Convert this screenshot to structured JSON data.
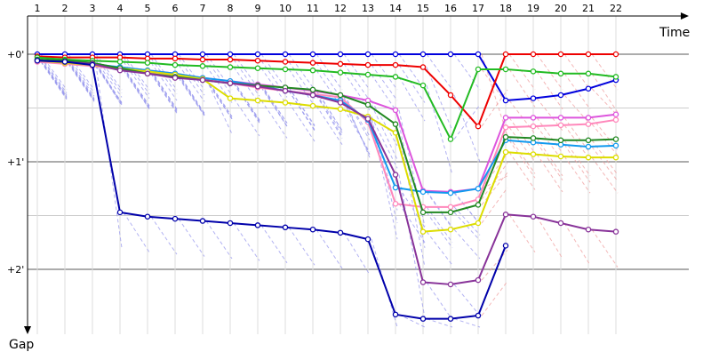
{
  "chart_data": {
    "type": "line",
    "xlabel": "Time",
    "ylabel": "Gap",
    "x_ticks": [
      "1",
      "2",
      "3",
      "4",
      "5",
      "6",
      "7",
      "8",
      "9",
      "10",
      "11",
      "12",
      "13",
      "14",
      "15",
      "16",
      "17",
      "18",
      "19",
      "20",
      "21",
      "22"
    ],
    "y_ticks": [
      {
        "value": 0,
        "label": "+0'"
      },
      {
        "value": 1,
        "label": "+1'"
      },
      {
        "value": 2,
        "label": "+2'"
      }
    ],
    "y_grid": [
      0,
      0.5,
      1,
      1.5,
      2
    ],
    "ylim": [
      -0.22,
      2.72
    ],
    "xlim": [
      0.2,
      23.5
    ],
    "grid": true,
    "pit_line_colors": {
      "before_time_17": "#9999ee",
      "after_time_17": "#f0a0a0"
    },
    "series": [
      {
        "color": "#0000dd",
        "x": [
          1,
          2,
          3,
          4,
          5,
          6,
          7,
          8,
          9,
          10,
          11,
          12,
          13,
          14,
          15,
          16,
          17,
          18,
          19,
          20,
          21,
          22
        ],
        "y": [
          0,
          0,
          0,
          0,
          0,
          0,
          0,
          0,
          0,
          0,
          0,
          0,
          0,
          0,
          0,
          0,
          0,
          0.43,
          0.41,
          0.38,
          0.32,
          0.24
        ]
      },
      {
        "color": "#ee0000",
        "x": [
          1,
          2,
          3,
          4,
          5,
          6,
          7,
          8,
          9,
          10,
          11,
          12,
          13,
          14,
          15,
          16,
          17,
          18,
          19,
          20,
          21,
          22
        ],
        "y": [
          0.02,
          0.03,
          0.03,
          0.03,
          0.04,
          0.04,
          0.05,
          0.05,
          0.06,
          0.07,
          0.08,
          0.09,
          0.1,
          0.1,
          0.12,
          0.38,
          0.67,
          0,
          0,
          0,
          0,
          0
        ]
      },
      {
        "color": "#22bb22",
        "x": [
          1,
          2,
          3,
          4,
          5,
          6,
          7,
          8,
          9,
          10,
          11,
          12,
          13,
          14,
          15,
          16,
          17,
          18,
          19,
          20,
          21,
          22
        ],
        "y": [
          0.03,
          0.05,
          0.06,
          0.07,
          0.08,
          0.1,
          0.11,
          0.12,
          0.13,
          0.14,
          0.15,
          0.17,
          0.19,
          0.21,
          0.29,
          0.79,
          0.14,
          0.14,
          0.16,
          0.18,
          0.18,
          0.21
        ]
      },
      {
        "color": "#dd55dd",
        "x": [
          1,
          2,
          3,
          4,
          5,
          6,
          7,
          8,
          9,
          10,
          11,
          12,
          13,
          14,
          15,
          16,
          17,
          18,
          19,
          20,
          21,
          22
        ],
        "y": [
          0.07,
          0.08,
          0.1,
          0.12,
          0.15,
          0.18,
          0.22,
          0.25,
          0.28,
          0.31,
          0.34,
          0.38,
          0.43,
          0.52,
          1.27,
          1.28,
          1.25,
          0.59,
          0.59,
          0.59,
          0.59,
          0.56
        ]
      },
      {
        "color": "#ff88bb",
        "x": [
          1,
          2,
          3,
          4,
          5,
          6,
          7,
          8,
          9,
          10,
          11,
          12,
          13,
          14,
          15,
          16,
          17,
          18,
          19,
          20,
          21,
          22
        ],
        "y": [
          0.07,
          0.09,
          0.11,
          0.14,
          0.17,
          0.2,
          0.23,
          0.27,
          0.31,
          0.34,
          0.37,
          0.4,
          0.63,
          1.39,
          1.42,
          1.42,
          1.35,
          0.68,
          0.67,
          0.66,
          0.65,
          0.61
        ]
      },
      {
        "color": "#1199ee",
        "x": [
          1,
          2,
          3,
          4,
          5,
          6,
          7,
          8,
          9,
          10,
          11,
          12,
          13,
          14,
          15,
          16,
          17,
          18,
          19,
          20,
          21,
          22
        ],
        "y": [
          0.05,
          0.07,
          0.09,
          0.12,
          0.15,
          0.18,
          0.22,
          0.25,
          0.29,
          0.34,
          0.38,
          0.43,
          0.61,
          1.24,
          1.28,
          1.29,
          1.25,
          0.8,
          0.82,
          0.84,
          0.86,
          0.85
        ]
      },
      {
        "color": "#dddd00",
        "x": [
          1,
          2,
          3,
          4,
          5,
          6,
          7,
          8,
          9,
          10,
          11,
          12,
          13,
          14,
          15,
          16,
          17,
          18,
          19,
          20,
          21,
          22
        ],
        "y": [
          0.06,
          0.08,
          0.1,
          0.13,
          0.16,
          0.19,
          0.23,
          0.41,
          0.43,
          0.45,
          0.48,
          0.51,
          0.58,
          0.73,
          1.65,
          1.63,
          1.57,
          0.91,
          0.93,
          0.95,
          0.96,
          0.96
        ]
      },
      {
        "color": "#228822",
        "x": [
          1,
          2,
          3,
          4,
          5,
          6,
          7,
          8,
          9,
          10,
          11,
          12,
          13,
          14,
          15,
          16,
          17,
          18,
          19,
          20,
          21,
          22
        ],
        "y": [
          0.05,
          0.06,
          0.08,
          0.13,
          0.18,
          0.21,
          0.24,
          0.27,
          0.29,
          0.31,
          0.33,
          0.38,
          0.47,
          0.65,
          1.47,
          1.47,
          1.4,
          0.77,
          0.78,
          0.8,
          0.8,
          0.79
        ]
      },
      {
        "color": "#883399",
        "x": [
          1,
          2,
          3,
          4,
          5,
          6,
          7,
          8,
          9,
          10,
          11,
          12,
          13,
          14,
          15,
          16,
          17,
          18,
          19,
          20,
          21,
          22
        ],
        "y": [
          0.06,
          0.07,
          0.09,
          0.15,
          0.18,
          0.22,
          0.24,
          0.27,
          0.3,
          0.34,
          0.38,
          0.45,
          0.6,
          1.12,
          2.12,
          2.14,
          2.1,
          1.49,
          1.51,
          1.57,
          1.63,
          1.65
        ]
      },
      {
        "color": "#0000aa",
        "x": [
          1,
          2,
          3,
          4,
          5,
          6,
          7,
          8,
          9,
          10,
          11,
          12,
          13,
          14,
          15,
          16,
          17,
          18
        ],
        "y": [
          0.06,
          0.07,
          0.1,
          1.47,
          1.51,
          1.53,
          1.55,
          1.57,
          1.59,
          1.61,
          1.63,
          1.66,
          1.72,
          2.42,
          2.46,
          2.46,
          2.43,
          1.78
        ]
      }
    ]
  }
}
